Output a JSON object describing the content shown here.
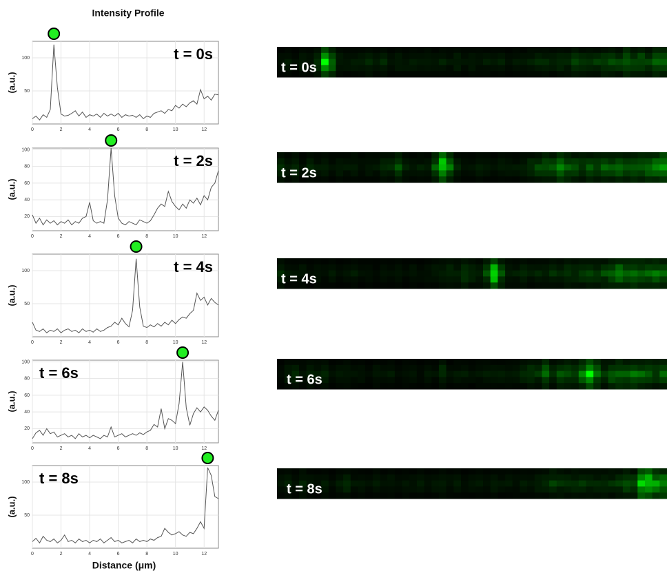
{
  "chart_data": [
    {
      "type": "line",
      "title": "Intensity Profile",
      "ylabel": "(a.u.)",
      "annotation": "t = 0s",
      "color": "#555555",
      "marker_color": "#22ee22",
      "x": [
        0,
        0.25,
        0.5,
        0.75,
        1,
        1.25,
        1.5,
        1.75,
        2,
        2.25,
        2.5,
        2.75,
        3,
        3.25,
        3.5,
        3.75,
        4,
        4.25,
        4.5,
        4.75,
        5,
        5.25,
        5.5,
        5.75,
        6,
        6.25,
        6.5,
        6.75,
        7,
        7.25,
        7.5,
        7.75,
        8,
        8.25,
        8.5,
        8.75,
        9,
        9.25,
        9.5,
        9.75,
        10,
        10.25,
        10.5,
        10.75,
        11,
        11.25,
        11.5,
        11.75,
        12,
        12.25,
        12.5,
        12.75,
        13
      ],
      "values": [
        8,
        12,
        6,
        14,
        10,
        22,
        120,
        55,
        15,
        12,
        13,
        16,
        20,
        12,
        18,
        10,
        14,
        12,
        15,
        10,
        16,
        12,
        15,
        12,
        16,
        10,
        14,
        12,
        13,
        10,
        14,
        8,
        12,
        10,
        16,
        18,
        20,
        16,
        22,
        20,
        28,
        24,
        30,
        26,
        32,
        35,
        30,
        52,
        38,
        42,
        36,
        45,
        44
      ],
      "xlim": [
        0,
        13
      ],
      "xticks": [
        0,
        2,
        4,
        6,
        8,
        10,
        12
      ],
      "ylim": [
        0,
        125
      ],
      "yticks": [
        50,
        100
      ],
      "grid": true
    },
    {
      "type": "line",
      "ylabel": "(a.u.)",
      "annotation": "t = 2s",
      "color": "#555555",
      "marker_color": "#22ee22",
      "x": [
        0,
        0.25,
        0.5,
        0.75,
        1,
        1.25,
        1.5,
        1.75,
        2,
        2.25,
        2.5,
        2.75,
        3,
        3.25,
        3.5,
        3.75,
        4,
        4.25,
        4.5,
        4.75,
        5,
        5.25,
        5.5,
        5.75,
        6,
        6.25,
        6.5,
        6.75,
        7,
        7.25,
        7.5,
        7.75,
        8,
        8.25,
        8.5,
        8.75,
        9,
        9.25,
        9.5,
        9.75,
        10,
        10.25,
        10.5,
        10.75,
        11,
        11.25,
        11.5,
        11.75,
        12,
        12.25,
        12.5,
        12.75,
        13
      ],
      "values": [
        22,
        12,
        18,
        10,
        16,
        12,
        15,
        10,
        14,
        12,
        16,
        10,
        14,
        12,
        18,
        20,
        37,
        15,
        12,
        14,
        12,
        40,
        102,
        45,
        18,
        12,
        10,
        14,
        12,
        10,
        16,
        14,
        12,
        15,
        22,
        30,
        35,
        32,
        50,
        38,
        32,
        28,
        35,
        30,
        40,
        36,
        42,
        34,
        45,
        40,
        55,
        60,
        75
      ],
      "xlim": [
        0,
        13
      ],
      "xticks": [
        0,
        2,
        4,
        6,
        8,
        10,
        12
      ],
      "ylim": [
        3,
        102
      ],
      "yticks": [
        20,
        40,
        60,
        80,
        100
      ],
      "grid": true
    },
    {
      "type": "line",
      "ylabel": "(a.u.)",
      "annotation": "t = 4s",
      "color": "#555555",
      "marker_color": "#22ee22",
      "x": [
        0,
        0.25,
        0.5,
        0.75,
        1,
        1.25,
        1.5,
        1.75,
        2,
        2.25,
        2.5,
        2.75,
        3,
        3.25,
        3.5,
        3.75,
        4,
        4.25,
        4.5,
        4.75,
        5,
        5.25,
        5.5,
        5.75,
        6,
        6.25,
        6.5,
        6.75,
        7,
        7.25,
        7.5,
        7.75,
        8,
        8.25,
        8.5,
        8.75,
        9,
        9.25,
        9.5,
        9.75,
        10,
        10.25,
        10.5,
        10.75,
        11,
        11.25,
        11.5,
        11.75,
        12,
        12.25,
        12.5,
        12.75,
        13
      ],
      "values": [
        22,
        10,
        8,
        12,
        6,
        10,
        8,
        12,
        6,
        10,
        12,
        8,
        10,
        6,
        12,
        8,
        10,
        7,
        12,
        8,
        10,
        14,
        16,
        22,
        18,
        28,
        20,
        15,
        40,
        118,
        45,
        16,
        14,
        18,
        15,
        20,
        16,
        22,
        18,
        25,
        20,
        26,
        30,
        28,
        35,
        40,
        66,
        55,
        60,
        48,
        58,
        52,
        48
      ],
      "xlim": [
        0,
        13
      ],
      "xticks": [
        0,
        2,
        4,
        6,
        8,
        10,
        12
      ],
      "ylim": [
        0,
        125
      ],
      "yticks": [
        50,
        100
      ],
      "grid": true
    },
    {
      "type": "line",
      "ylabel": "(a.u.)",
      "annotation": "t = 6s",
      "color": "#555555",
      "marker_color": "#22ee22",
      "x": [
        0,
        0.25,
        0.5,
        0.75,
        1,
        1.25,
        1.5,
        1.75,
        2,
        2.25,
        2.5,
        2.75,
        3,
        3.25,
        3.5,
        3.75,
        4,
        4.25,
        4.5,
        4.75,
        5,
        5.25,
        5.5,
        5.75,
        6,
        6.25,
        6.5,
        6.75,
        7,
        7.25,
        7.5,
        7.75,
        8,
        8.25,
        8.5,
        8.75,
        9,
        9.25,
        9.5,
        9.75,
        10,
        10.25,
        10.5,
        10.75,
        11,
        11.25,
        11.5,
        11.75,
        12,
        12.25,
        12.5,
        12.75,
        13
      ],
      "values": [
        8,
        15,
        18,
        12,
        20,
        14,
        16,
        10,
        12,
        14,
        10,
        12,
        8,
        14,
        10,
        12,
        9,
        12,
        10,
        8,
        12,
        10,
        22,
        10,
        12,
        14,
        10,
        12,
        14,
        12,
        15,
        13,
        16,
        18,
        25,
        22,
        44,
        20,
        32,
        30,
        26,
        50,
        100,
        45,
        24,
        38,
        45,
        40,
        46,
        42,
        35,
        30,
        42
      ],
      "xlim": [
        0,
        13
      ],
      "xticks": [
        0,
        2,
        4,
        6,
        8,
        10,
        12
      ],
      "ylim": [
        3,
        102
      ],
      "yticks": [
        20,
        40,
        60,
        80,
        100
      ],
      "grid": true
    },
    {
      "type": "line",
      "ylabel": "(a.u.)",
      "xlabel": "Distance (μm)",
      "annotation": "t = 8s",
      "color": "#555555",
      "marker_color": "#22ee22",
      "x": [
        0,
        0.25,
        0.5,
        0.75,
        1,
        1.25,
        1.5,
        1.75,
        2,
        2.25,
        2.5,
        2.75,
        3,
        3.25,
        3.5,
        3.75,
        4,
        4.25,
        4.5,
        4.75,
        5,
        5.25,
        5.5,
        5.75,
        6,
        6.25,
        6.5,
        6.75,
        7,
        7.25,
        7.5,
        7.75,
        8,
        8.25,
        8.5,
        8.75,
        9,
        9.25,
        9.5,
        9.75,
        10,
        10.25,
        10.5,
        10.75,
        11,
        11.25,
        11.5,
        11.75,
        12,
        12.25,
        12.5,
        12.75,
        13
      ],
      "values": [
        10,
        15,
        8,
        18,
        12,
        10,
        14,
        8,
        12,
        20,
        10,
        12,
        8,
        14,
        10,
        12,
        8,
        12,
        10,
        14,
        8,
        12,
        16,
        10,
        12,
        8,
        10,
        12,
        8,
        14,
        10,
        12,
        10,
        14,
        12,
        16,
        18,
        30,
        24,
        20,
        22,
        25,
        20,
        18,
        24,
        22,
        30,
        40,
        30,
        122,
        110,
        78,
        75
      ],
      "xlim": [
        0,
        13
      ],
      "xticks": [
        0,
        2,
        4,
        6,
        8,
        10,
        12
      ],
      "ylim": [
        0,
        125
      ],
      "yticks": [
        50,
        100
      ],
      "grid": true
    }
  ]
}
